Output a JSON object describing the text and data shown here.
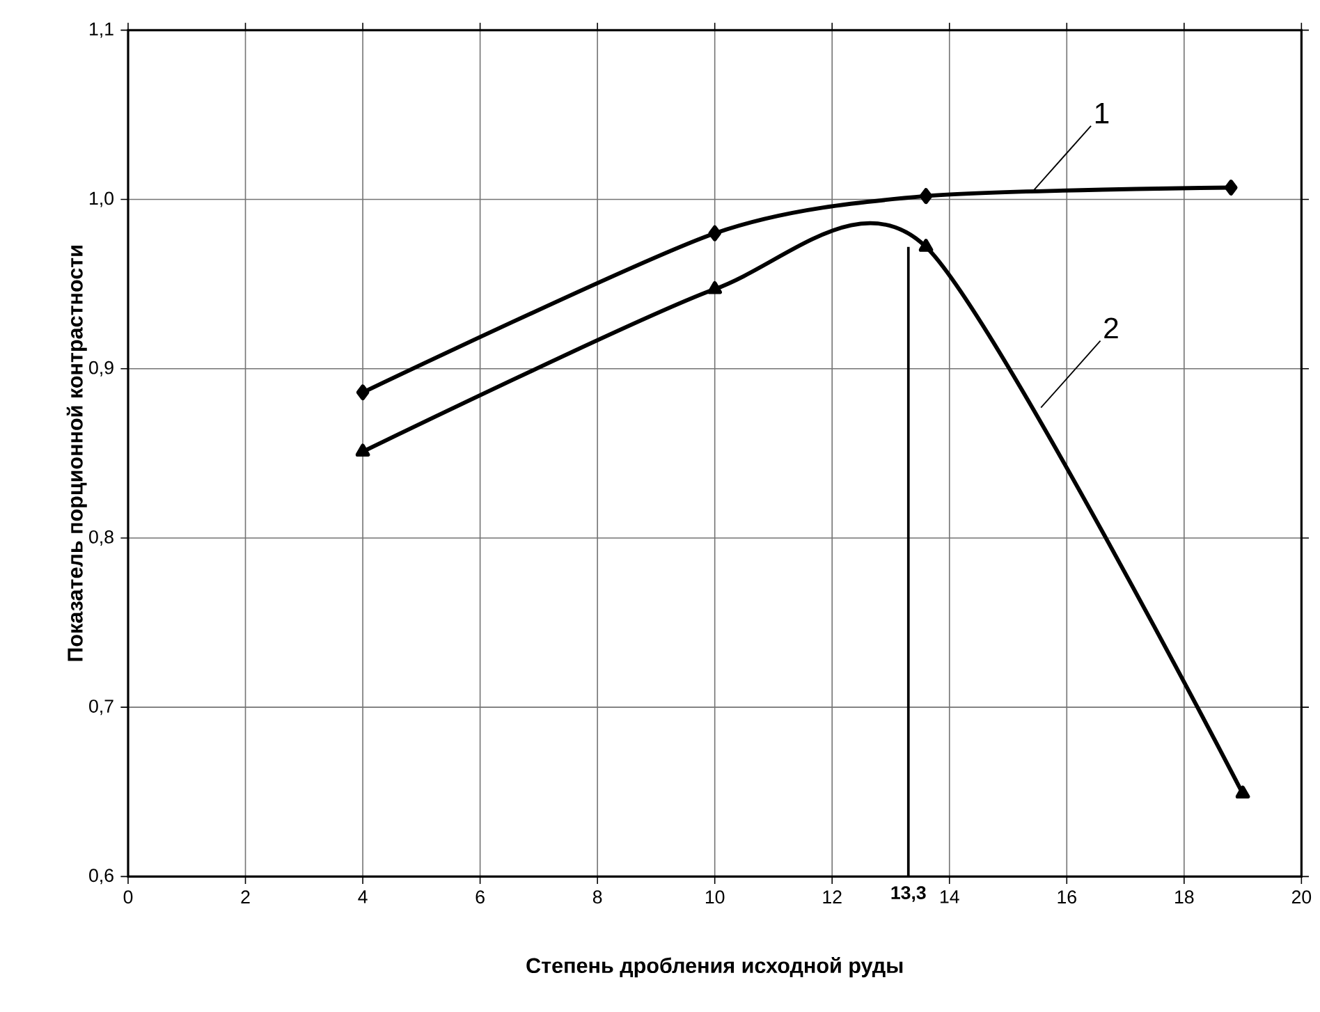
{
  "chart_data": {
    "type": "line",
    "xlabel": "Степень дробления исходной руды",
    "ylabel": "Показатель порционной контрастности",
    "xlim": [
      0,
      20
    ],
    "xticks": [
      0,
      2,
      4,
      6,
      8,
      10,
      12,
      14,
      16,
      18,
      20
    ],
    "ylim": [
      0.6,
      1.1
    ],
    "yticks": [
      {
        "value": 0.6,
        "label": "0,6"
      },
      {
        "value": 0.7,
        "label": "0,7"
      },
      {
        "value": 0.8,
        "label": "0,8"
      },
      {
        "value": 0.9,
        "label": "0,9"
      },
      {
        "value": 1.0,
        "label": "1,0"
      },
      {
        "value": 1.1,
        "label": "1,1"
      }
    ],
    "grid": true,
    "line_style": "solid",
    "series": [
      {
        "color": "#000000",
        "marker": "diamond",
        "x": [
          4,
          10,
          13.6,
          18.8
        ],
        "values": [
          0.886,
          0.98,
          1.002,
          1.007
        ]
      },
      {
        "color": "#000000",
        "marker": "triangle",
        "x": [
          4,
          10,
          13.6,
          19
        ],
        "values": [
          0.851,
          0.947,
          0.972,
          0.649
        ]
      }
    ],
    "ref_lines": [
      {
        "axis": "x",
        "value": 13.3,
        "label": "13,3",
        "color": "#000000"
      }
    ],
    "annotations": [
      {
        "text": "1",
        "x": 15.4,
        "y": 1.004
      },
      {
        "text": "2",
        "x": 15.56,
        "y": 0.877
      }
    ]
  }
}
